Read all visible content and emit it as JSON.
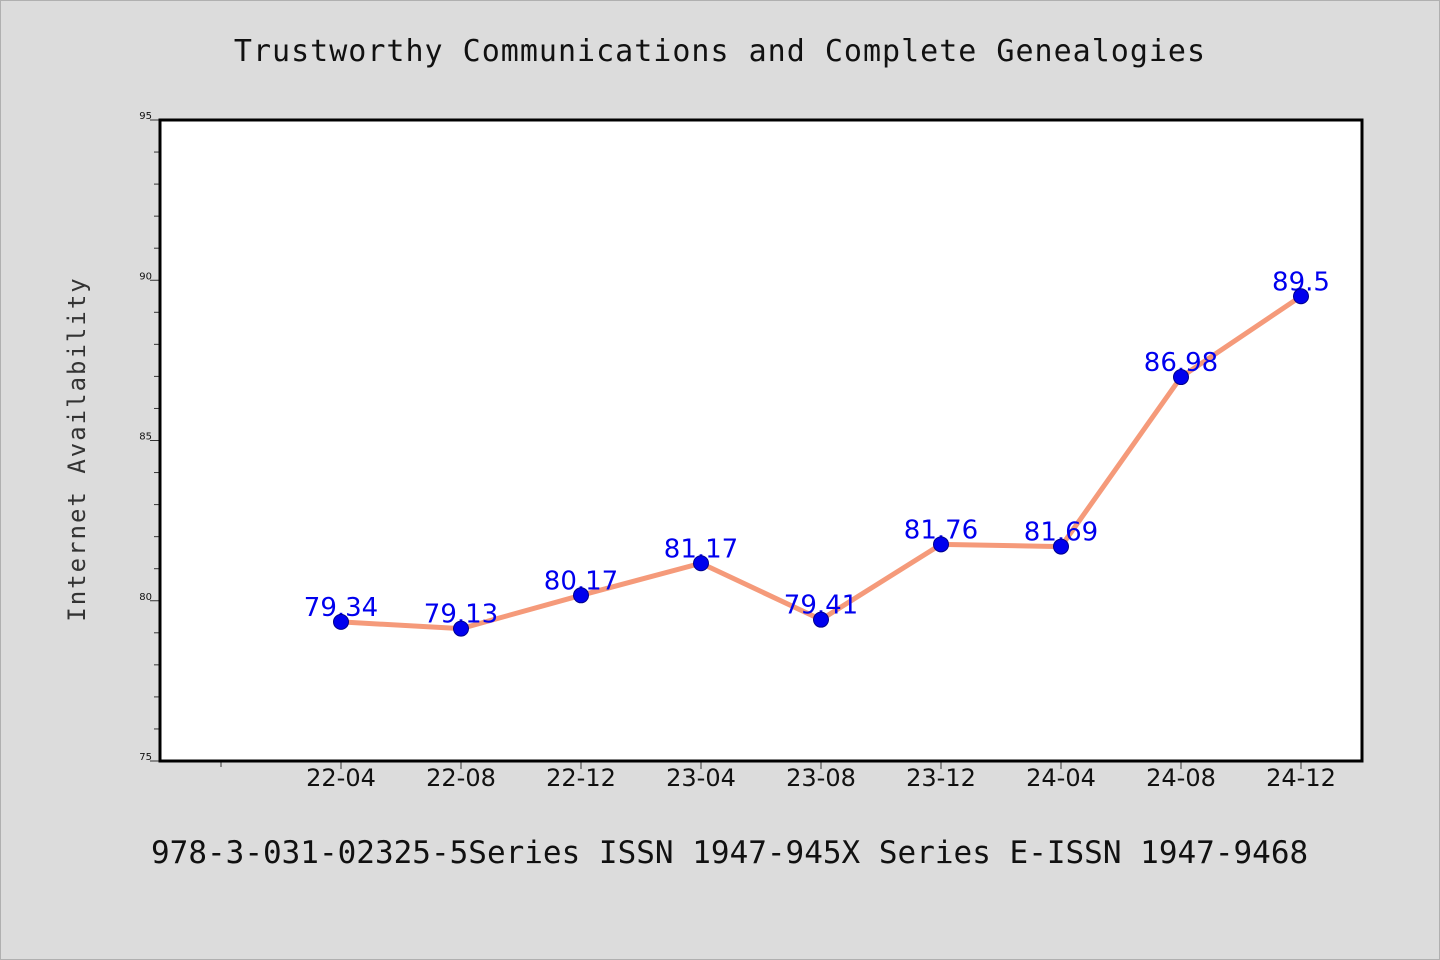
{
  "chart_data": {
    "type": "line",
    "title": "Trustworthy Communications and Complete Genealogies",
    "xlabel": "",
    "ylabel": "Internet Availability",
    "categories": [
      "22-04",
      "22-08",
      "22-12",
      "23-04",
      "23-08",
      "23-12",
      "24-04",
      "24-08",
      "24-12"
    ],
    "series": [
      {
        "values": [
          79.34,
          79.13,
          80.17,
          81.17,
          79.41,
          81.76,
          81.69,
          86.98,
          89.5
        ],
        "data_labels": [
          "79.34",
          "79.13",
          "80.17",
          "81.17",
          "79.41",
          "81.76",
          "81.69",
          "86.98",
          "89.5"
        ],
        "line_color": "#f59a7a",
        "marker_color": "#0000ee",
        "label_color": "#0000ee"
      }
    ],
    "ylim": [
      75,
      95
    ],
    "y_ticks": [
      75,
      80,
      85,
      90,
      95
    ],
    "y_tick_labels": [
      "75",
      "80",
      "85",
      "90",
      "95"
    ],
    "grid": false,
    "legend": "none"
  },
  "footer": {
    "text": "978-3-031-02325-5Series ISSN 1947-945X Series E-ISSN 1947-9468"
  },
  "colors": {
    "background": "#dcdcdc",
    "plot_area": "#ffffff",
    "axis": "#000000"
  }
}
